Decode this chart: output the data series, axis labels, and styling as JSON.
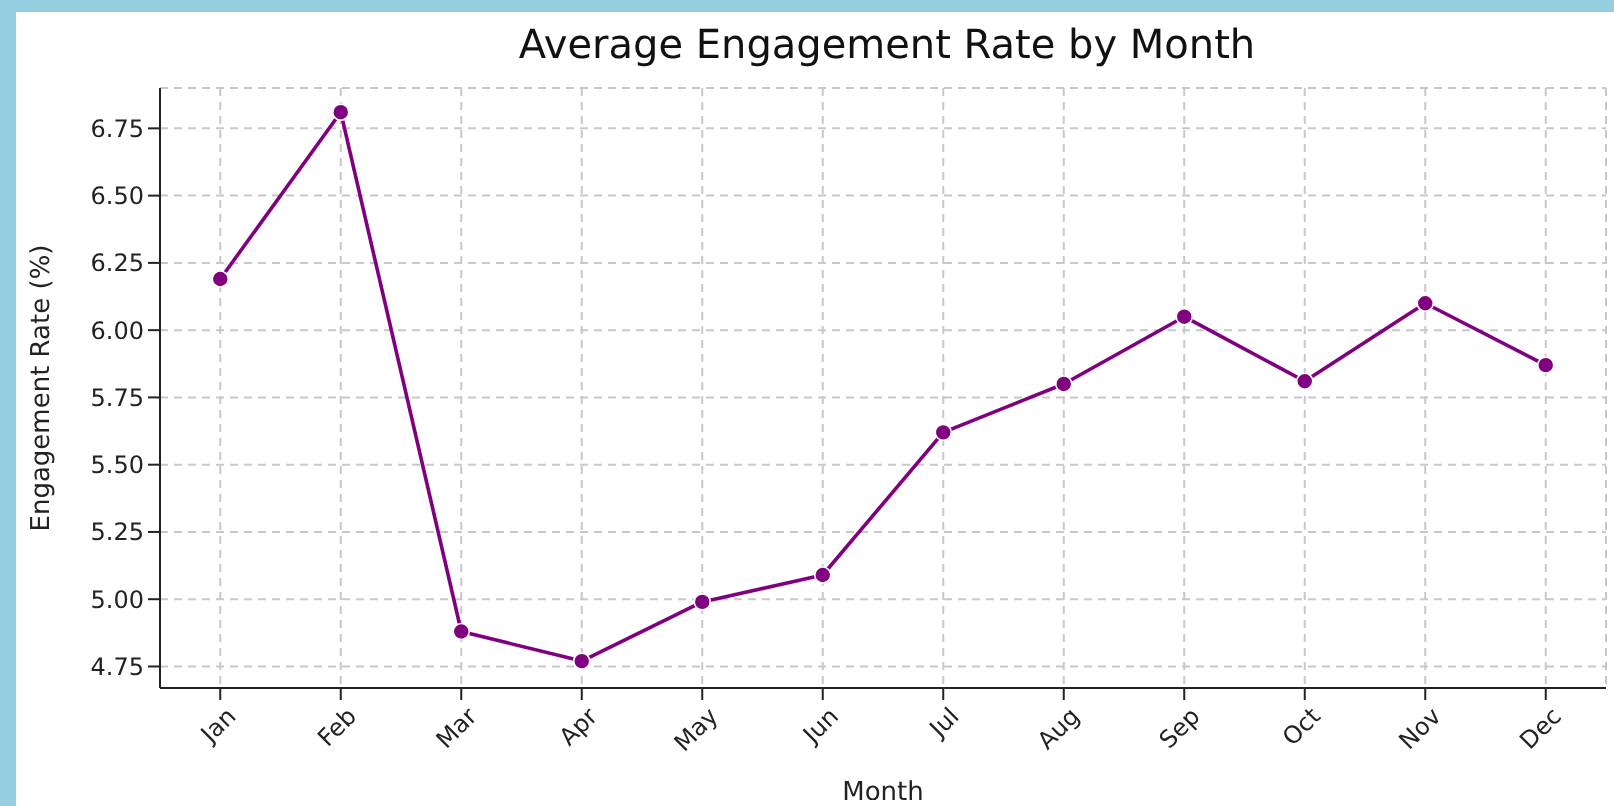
{
  "chart_data": {
    "type": "line",
    "title": "Average Engagement Rate by Month",
    "xlabel": "Month",
    "ylabel": "Engagement Rate (%)",
    "categories": [
      "Jan",
      "Feb",
      "Mar",
      "Apr",
      "May",
      "Jun",
      "Jul",
      "Aug",
      "Sep",
      "Oct",
      "Nov",
      "Dec"
    ],
    "series": [
      {
        "color": "#800080",
        "values": [
          6.19,
          6.81,
          4.88,
          4.77,
          4.99,
          5.09,
          5.62,
          5.8,
          6.05,
          5.81,
          6.1,
          5.87
        ]
      }
    ],
    "ylim": [
      4.67,
      6.9
    ],
    "yticks": [
      4.75,
      {
        "value": 5,
        "label": "5.00"
      },
      5.25,
      {
        "value": 5.5,
        "label": "5.50"
      },
      5.75,
      {
        "value": 6,
        "label": "6.00"
      },
      6.25,
      {
        "value": 6.5,
        "label": "6.50"
      },
      6.75
    ],
    "grid": true,
    "marker": "circle",
    "line_style": "solid"
  }
}
